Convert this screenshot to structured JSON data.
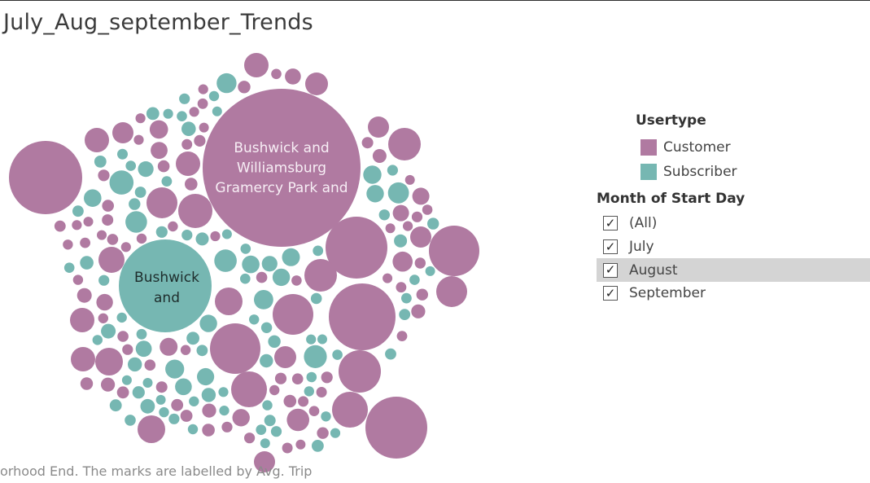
{
  "title": "July_Aug_september_Trends",
  "caption": "orhood End. The marks are labelled by Avg. Trip",
  "colors": {
    "customer": "#b07aa1",
    "subscriber": "#76b7b2"
  },
  "legend": {
    "title": "Usertype",
    "items": [
      {
        "label": "Customer",
        "color": "#b07aa1"
      },
      {
        "label": "Subscriber",
        "color": "#76b7b2"
      }
    ]
  },
  "filter": {
    "title": "Month of Start Day",
    "options": [
      {
        "label": "(All)",
        "checked": true
      },
      {
        "label": "July",
        "checked": true
      },
      {
        "label": "August",
        "checked": true,
        "highlighted": true
      },
      {
        "label": "September",
        "checked": true
      }
    ]
  },
  "chart_data": {
    "type": "packed-bubble",
    "size_encodes": "Avg. Trip",
    "color_encodes": "Usertype",
    "labeled_marks": [
      {
        "usertype": "Customer",
        "label_lines": [
          "Bushwick and",
          "Williamsburg",
          "Gramercy Park and"
        ]
      },
      {
        "usertype": "Subscriber",
        "label_lines": [
          "Bushwick",
          "and"
        ]
      }
    ]
  }
}
